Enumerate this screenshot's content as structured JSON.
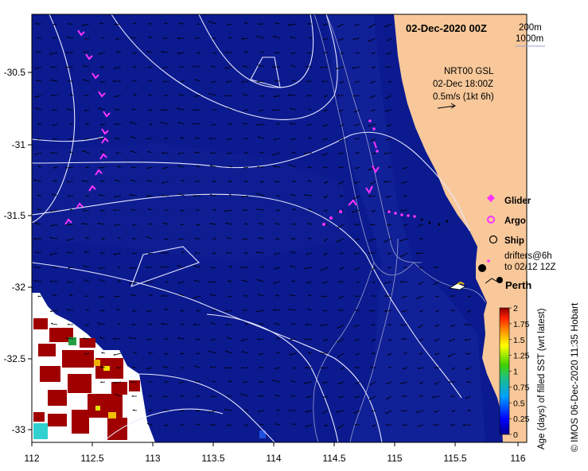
{
  "map": {
    "date_title": "02-Dec-2020 00Z",
    "depth_contours": [
      "200m",
      "1000m"
    ],
    "product_lines": [
      "NRT00 GSL",
      "02-Dec 18:00Z",
      "0.5m/s (1kt 6h)"
    ],
    "place_label": "Perth",
    "credit": "© IMOS 06-Dec-2020 11:35 Hobart",
    "x_ticks": [
      "112",
      "112.5",
      "113",
      "113.5",
      "114",
      "114.5",
      "115",
      "115.5",
      "116"
    ],
    "y_ticks": [
      "-30.5",
      "-31",
      "-31.5",
      "-32",
      "-32.5",
      "-33"
    ],
    "colors": {
      "ocean": "#0b1a8f",
      "land": "#f8c89a",
      "marker": "#ff33ff"
    }
  },
  "legend": {
    "glider": "Glider",
    "argo": "Argo",
    "ship": "Ship",
    "drifters_1": "drifters@6h",
    "drifters_2": "to 02/12 12Z"
  },
  "colorbar": {
    "label": "Age (days) of filled SST (wrt latest)",
    "ticks": [
      "0",
      "0.25",
      "0.5",
      "0.75",
      "1",
      "1.25",
      "1.5",
      "1.75",
      "2"
    ]
  }
}
